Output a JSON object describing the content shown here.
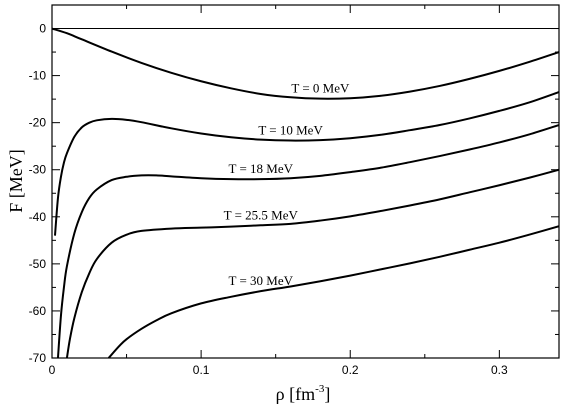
{
  "chart_data": {
    "type": "line",
    "xlabel": "ρ [fm",
    "xlabel_sup": "-3",
    "xlabel_end": "]",
    "ylabel": "F [MeV]",
    "xlim": [
      0,
      0.34
    ],
    "ylim": [
      -70,
      5
    ],
    "xticks": [
      0,
      0.1,
      0.2,
      0.3
    ],
    "xtick_labels": [
      "0",
      "0.1",
      "0.2",
      "0.3"
    ],
    "yticks": [
      0,
      -10,
      -20,
      -30,
      -40,
      -50,
      -60,
      -70
    ],
    "ytick_labels": [
      "0",
      "-10",
      "-20",
      "-30",
      "-40",
      "-50",
      "-60",
      "-70"
    ],
    "reference_line_y": 0,
    "series": [
      {
        "name": "T = 0 MeV",
        "x": [
          0,
          0.01,
          0.02,
          0.04,
          0.06,
          0.08,
          0.1,
          0.12,
          0.14,
          0.16,
          0.18,
          0.2,
          0.22,
          0.24,
          0.26,
          0.28,
          0.3,
          0.32,
          0.34
        ],
        "y": [
          0,
          -1.0,
          -2.3,
          -4.9,
          -7.3,
          -9.4,
          -11.2,
          -12.7,
          -13.9,
          -14.6,
          -14.9,
          -14.8,
          -14.3,
          -13.4,
          -12.2,
          -10.7,
          -9.0,
          -7.1,
          -5.0
        ]
      },
      {
        "name": "T = 10 MeV",
        "x": [
          0.002,
          0.004,
          0.006,
          0.008,
          0.01,
          0.015,
          0.02,
          0.025,
          0.03,
          0.04,
          0.05,
          0.06,
          0.08,
          0.1,
          0.12,
          0.14,
          0.16,
          0.18,
          0.2,
          0.22,
          0.24,
          0.26,
          0.28,
          0.3,
          0.32,
          0.34
        ],
        "y": [
          -44.0,
          -36.0,
          -31.5,
          -28.5,
          -26.5,
          -23.0,
          -21.0,
          -20.0,
          -19.5,
          -19.2,
          -19.4,
          -19.9,
          -21.2,
          -22.3,
          -23.1,
          -23.6,
          -23.8,
          -23.7,
          -23.3,
          -22.6,
          -21.6,
          -20.5,
          -19.1,
          -17.5,
          -15.7,
          -13.5
        ]
      },
      {
        "name": "T = 18 MeV",
        "x": [
          0.004,
          0.006,
          0.008,
          0.01,
          0.015,
          0.02,
          0.025,
          0.03,
          0.04,
          0.05,
          0.06,
          0.07,
          0.08,
          0.1,
          0.12,
          0.14,
          0.16,
          0.18,
          0.2,
          0.22,
          0.24,
          0.26,
          0.28,
          0.3,
          0.32,
          0.34
        ],
        "y": [
          -70.0,
          -61.0,
          -55.0,
          -50.5,
          -43.5,
          -39.0,
          -36.0,
          -34.2,
          -32.2,
          -31.5,
          -31.2,
          -31.2,
          -31.4,
          -31.8,
          -32.0,
          -32.0,
          -31.8,
          -31.3,
          -30.5,
          -29.6,
          -28.4,
          -27.1,
          -25.7,
          -24.2,
          -22.5,
          -20.5
        ]
      },
      {
        "name": "T = 25.5 MeV",
        "x": [
          0.01,
          0.012,
          0.015,
          0.02,
          0.025,
          0.03,
          0.04,
          0.05,
          0.06,
          0.08,
          0.1,
          0.12,
          0.14,
          0.16,
          0.18,
          0.2,
          0.22,
          0.24,
          0.26,
          0.28,
          0.3,
          0.32,
          0.34
        ],
        "y": [
          -70.0,
          -66.0,
          -61.5,
          -56.0,
          -52.0,
          -49.0,
          -45.5,
          -43.8,
          -43.0,
          -42.5,
          -42.3,
          -42.1,
          -41.8,
          -41.5,
          -40.8,
          -39.9,
          -38.8,
          -37.6,
          -36.3,
          -34.8,
          -33.3,
          -31.7,
          -30.0
        ]
      },
      {
        "name": "T = 30 MeV",
        "x": [
          0.038,
          0.045,
          0.05,
          0.06,
          0.07,
          0.08,
          0.1,
          0.12,
          0.14,
          0.16,
          0.18,
          0.2,
          0.22,
          0.24,
          0.26,
          0.28,
          0.3,
          0.32,
          0.34
        ],
        "y": [
          -70.0,
          -67.5,
          -66.0,
          -63.8,
          -62.0,
          -60.5,
          -58.4,
          -57.0,
          -55.8,
          -54.8,
          -53.7,
          -52.5,
          -51.2,
          -49.9,
          -48.5,
          -47.0,
          -45.5,
          -43.8,
          -42.0
        ]
      }
    ]
  }
}
